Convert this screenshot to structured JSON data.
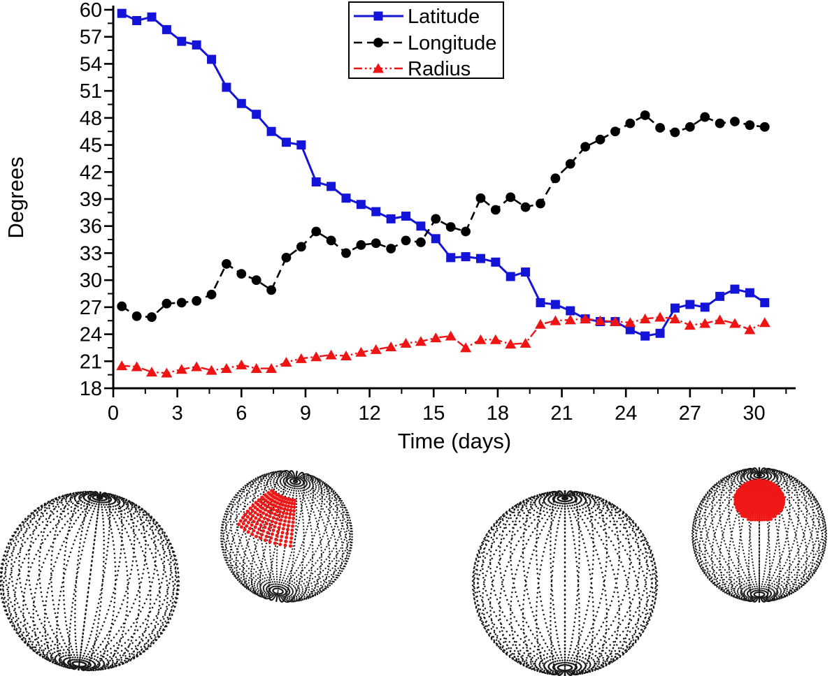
{
  "chart_data": {
    "type": "line",
    "title": "",
    "xlabel": "Time (days)",
    "ylabel": "Degrees",
    "xlim": [
      0,
      32
    ],
    "ylim": [
      18,
      60.9
    ],
    "grid": false,
    "legend_position": "top-center",
    "x_tick_labels": [
      "0",
      "3",
      "6",
      "9",
      "12",
      "15",
      "18",
      "21",
      "24",
      "27",
      "30"
    ],
    "x_major_ticks": [
      0,
      3,
      6,
      9,
      12,
      15,
      18,
      21,
      24,
      27,
      30
    ],
    "x_minor_step": 1.5,
    "y_tick_labels": [
      "18",
      "21",
      "24",
      "27",
      "30",
      "33",
      "36",
      "39",
      "42",
      "45",
      "48",
      "51",
      "54",
      "57",
      "60"
    ],
    "y_major_ticks": [
      18,
      21,
      24,
      27,
      30,
      33,
      36,
      39,
      42,
      45,
      48,
      51,
      54,
      57,
      60
    ],
    "y_minor_step": 1.5,
    "x": [
      0.4,
      1.1,
      1.8,
      2.5,
      3.2,
      3.9,
      4.6,
      5.3,
      6.0,
      6.7,
      7.4,
      8.1,
      8.8,
      9.5,
      10.2,
      10.9,
      11.6,
      12.3,
      13.0,
      13.7,
      14.4,
      15.1,
      15.8,
      16.5,
      17.2,
      17.9,
      18.6,
      19.3,
      20.0,
      20.7,
      21.4,
      22.1,
      22.8,
      23.5,
      24.2,
      24.9,
      25.6,
      26.3,
      27.0,
      27.7,
      28.4,
      29.1,
      29.8,
      30.5
    ],
    "series": [
      {
        "name": "Latitude",
        "color": "#1414d9",
        "marker": "square",
        "line_style": "solid",
        "values": [
          59.6,
          58.8,
          59.2,
          57.8,
          56.5,
          56.1,
          54.5,
          51.4,
          49.6,
          48.4,
          46.5,
          45.3,
          45.0,
          40.9,
          40.4,
          39.1,
          38.4,
          37.6,
          36.8,
          37.1,
          36.0,
          34.6,
          32.5,
          32.6,
          32.4,
          32.0,
          30.4,
          30.9,
          27.5,
          27.3,
          26.6,
          25.7,
          25.4,
          25.4,
          24.5,
          23.8,
          24.1,
          26.9,
          27.3,
          27.0,
          28.2,
          29.0,
          28.6,
          27.5
        ]
      },
      {
        "name": "Longitude",
        "color": "#000000",
        "marker": "circle",
        "line_style": "dashed",
        "values": [
          27.1,
          26.0,
          25.9,
          27.4,
          27.5,
          27.7,
          28.4,
          31.8,
          30.7,
          30.0,
          28.9,
          32.5,
          33.7,
          35.4,
          34.4,
          33.0,
          33.9,
          34.1,
          33.5,
          34.4,
          34.2,
          36.8,
          35.9,
          35.4,
          39.1,
          37.8,
          39.2,
          38.1,
          38.5,
          41.3,
          42.9,
          44.8,
          45.6,
          46.5,
          47.4,
          48.3,
          46.9,
          46.4,
          47.0,
          48.1,
          47.4,
          47.6,
          47.2,
          47.0
        ]
      },
      {
        "name": "Radius",
        "color": "#ee1414",
        "marker": "triangle",
        "line_style": "dash-dot-dot",
        "values": [
          20.5,
          20.4,
          19.8,
          19.7,
          20.1,
          20.4,
          20.0,
          20.2,
          20.6,
          20.2,
          20.2,
          20.9,
          21.3,
          21.5,
          21.7,
          21.6,
          22.0,
          22.3,
          22.6,
          23.0,
          23.2,
          23.6,
          23.8,
          22.5,
          23.4,
          23.4,
          22.9,
          23.0,
          25.1,
          25.5,
          25.6,
          25.7,
          25.5,
          25.4,
          25.3,
          25.7,
          25.9,
          25.7,
          25.0,
          25.2,
          25.6,
          25.2,
          24.5,
          25.3
        ]
      }
    ]
  },
  "legend": {
    "entries": [
      {
        "label": "Latitude"
      },
      {
        "label": "Longitude"
      },
      {
        "label": "Radius"
      }
    ]
  },
  "spheres": {
    "dot_color": "#161616",
    "patch_color": "#f01717",
    "items": [
      {
        "name": "sphere-plain-far-left",
        "red_patch": false,
        "patch_style": "none"
      },
      {
        "name": "sphere-with-spot-grid",
        "red_patch": true,
        "patch_style": "mid-latitude dotted spot, upper-left front"
      },
      {
        "name": "sphere-plain-mid-right",
        "red_patch": false,
        "patch_style": "none"
      },
      {
        "name": "sphere-with-polar-cap",
        "red_patch": true,
        "patch_style": "solid cap near north pole, front"
      }
    ]
  }
}
